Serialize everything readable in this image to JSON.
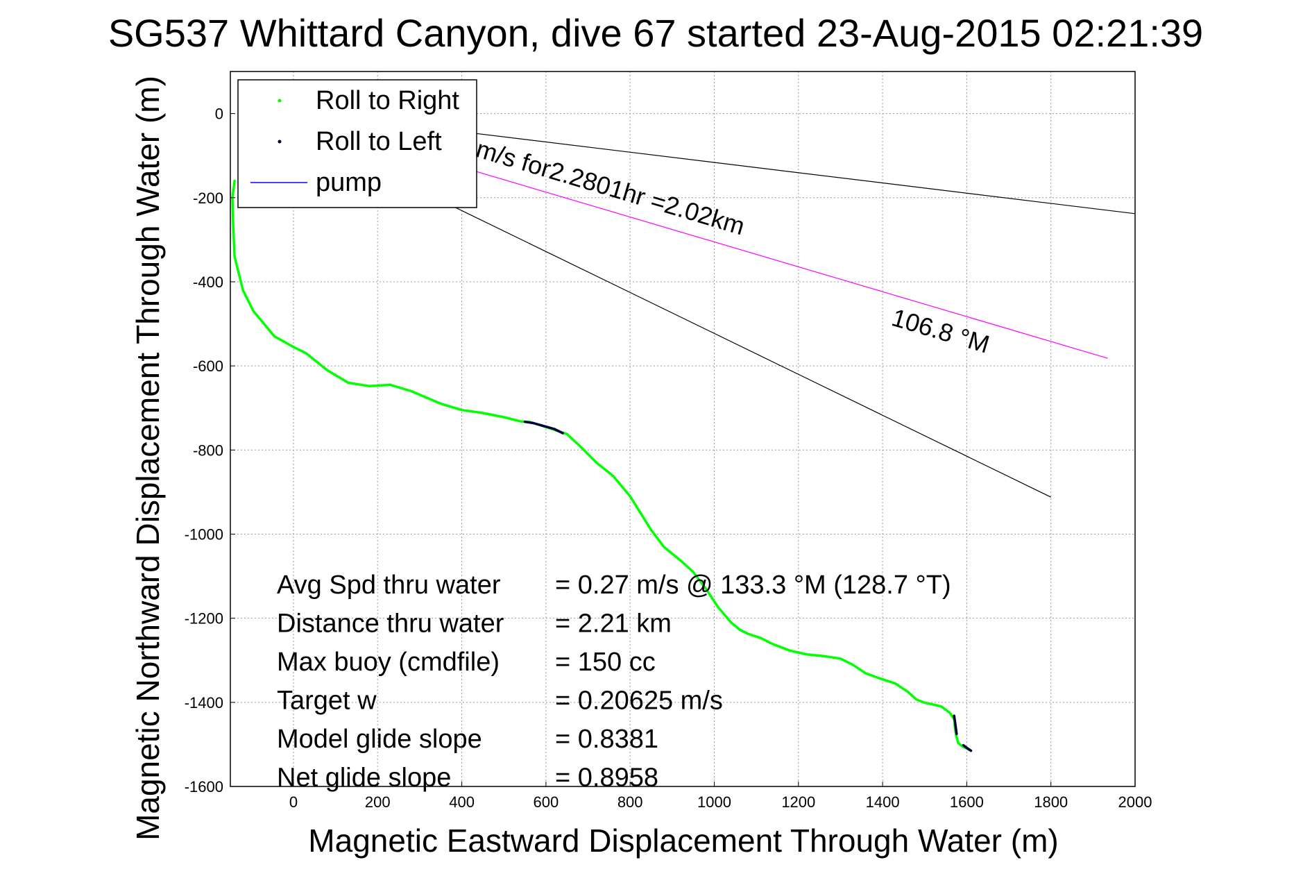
{
  "chart_data": {
    "type": "line",
    "title": "SG537 Whittard Canyon, dive 67 started 23-Aug-2015 02:21:39",
    "xlabel": "Magnetic Eastward Displacement Through Water (m)",
    "ylabel": "Magnetic Northward Displacement Through Water (m)",
    "xlim": [
      -150,
      2000
    ],
    "ylim": [
      -1600,
      100
    ],
    "xticks": [
      0,
      200,
      400,
      600,
      800,
      1000,
      1200,
      1400,
      1600,
      1800,
      2000
    ],
    "yticks": [
      0,
      -200,
      -400,
      -600,
      -800,
      -1000,
      -1200,
      -1400,
      -1600
    ],
    "grid": true,
    "legend_position": "top-left",
    "series": [
      {
        "name": "Roll to Right",
        "color": "#00ff00",
        "x": [
          -140,
          -145,
          -143,
          -140,
          -120,
          -95,
          -45,
          0,
          30,
          80,
          130,
          180,
          230,
          280,
          350,
          400,
          450,
          500,
          540,
          560,
          590,
          620,
          650,
          680,
          720,
          760,
          800,
          850,
          880,
          920,
          950,
          980,
          1010,
          1040,
          1060,
          1080,
          1110,
          1140,
          1180,
          1220,
          1260,
          1300,
          1330,
          1360,
          1390,
          1430,
          1460,
          1480,
          1500,
          1520,
          1540,
          1560,
          1570,
          1572,
          1575,
          1580,
          1590,
          1600,
          1610
        ],
        "y": [
          -160,
          -200,
          -270,
          -340,
          -420,
          -470,
          -530,
          -555,
          -570,
          -610,
          -640,
          -648,
          -645,
          -660,
          -690,
          -705,
          -712,
          -722,
          -732,
          -733,
          -742,
          -752,
          -762,
          -790,
          -830,
          -862,
          -910,
          -990,
          -1030,
          -1063,
          -1090,
          -1130,
          -1175,
          -1210,
          -1227,
          -1237,
          -1247,
          -1262,
          -1277,
          -1286,
          -1290,
          -1296,
          -1311,
          -1331,
          -1342,
          -1355,
          -1375,
          -1393,
          -1401,
          -1405,
          -1410,
          -1425,
          -1440,
          -1460,
          -1480,
          -1497,
          -1505,
          -1510,
          -1515
        ]
      },
      {
        "name": "Roll to Left",
        "color": "#000040",
        "segments": [
          {
            "x": [
              550,
              570,
              595,
              620,
              640
            ],
            "y": [
              -733,
              -736,
              -743,
              -750,
              -760
            ]
          },
          {
            "x": [
              1570,
              1572,
              1574,
              1576
            ],
            "y": [
              -1432,
              -1445,
              -1460,
              -1475
            ]
          },
          {
            "x": [
              1592,
              1600,
              1610
            ],
            "y": [
              -1502,
              -1508,
              -1515
            ]
          }
        ]
      },
      {
        "name": "pump",
        "color": "#0000ff",
        "x": [],
        "y": []
      }
    ],
    "reference_lines": [
      {
        "name": "upper-reference",
        "color": "#000000",
        "x": [
          300,
          2000
        ],
        "y": [
          -31,
          -238
        ]
      },
      {
        "name": "heading-line",
        "color": "#ff00ff",
        "x": [
          300,
          1935
        ],
        "y": [
          -98,
          -582
        ]
      },
      {
        "name": "lower-reference",
        "color": "#000000",
        "x": [
          300,
          1800
        ],
        "y": [
          -182,
          -912
        ]
      }
    ],
    "annotations": {
      "heading_partial": "m/s for2.2801hr =2.02km",
      "heading_angle": "106.8 °M"
    },
    "stats": [
      {
        "label": "Avg Spd thru water",
        "value": "=  0.27 m/s @ 133.3 °M (128.7 °T)"
      },
      {
        "label": "Distance thru water",
        "value": "=  2.21 km"
      },
      {
        "label": "Max buoy (cmdfile)",
        "value": "= 150 cc"
      },
      {
        "label": "Target w",
        "value": "= 0.20625 m/s"
      },
      {
        "label": "Model glide slope",
        "value": "= 0.8381"
      },
      {
        "label": "Net glide slope",
        "value": "= 0.8958"
      }
    ]
  }
}
